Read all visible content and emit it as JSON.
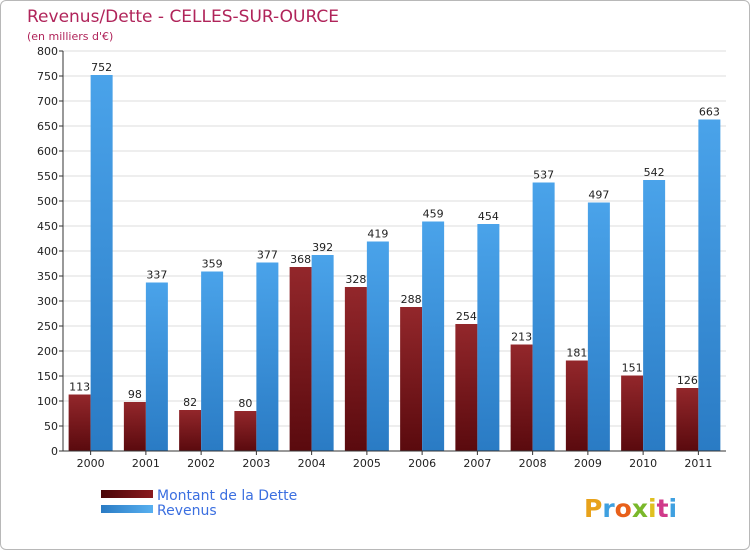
{
  "chart_data": {
    "type": "bar",
    "title": "Revenus/Dette - CELLES-SUR-OURCE",
    "subtitle": "(en milliers d'€)",
    "categories": [
      "2000",
      "2001",
      "2002",
      "2003",
      "2004",
      "2005",
      "2006",
      "2007",
      "2008",
      "2009",
      "2010",
      "2011"
    ],
    "series": [
      {
        "name": "Montant de la Dette",
        "color": "#7a1416",
        "values": [
          113,
          98,
          82,
          80,
          368,
          328,
          288,
          254,
          213,
          181,
          151,
          126
        ]
      },
      {
        "name": "Revenus",
        "color": "#3f96dd",
        "values": [
          752,
          337,
          359,
          377,
          392,
          419,
          459,
          454,
          537,
          497,
          542,
          663
        ]
      }
    ],
    "ylim": [
      0,
      800
    ],
    "ytick_step": 50,
    "grid": true,
    "legend_position": "bottom-left"
  },
  "logo": {
    "text": "Proxiti"
  }
}
